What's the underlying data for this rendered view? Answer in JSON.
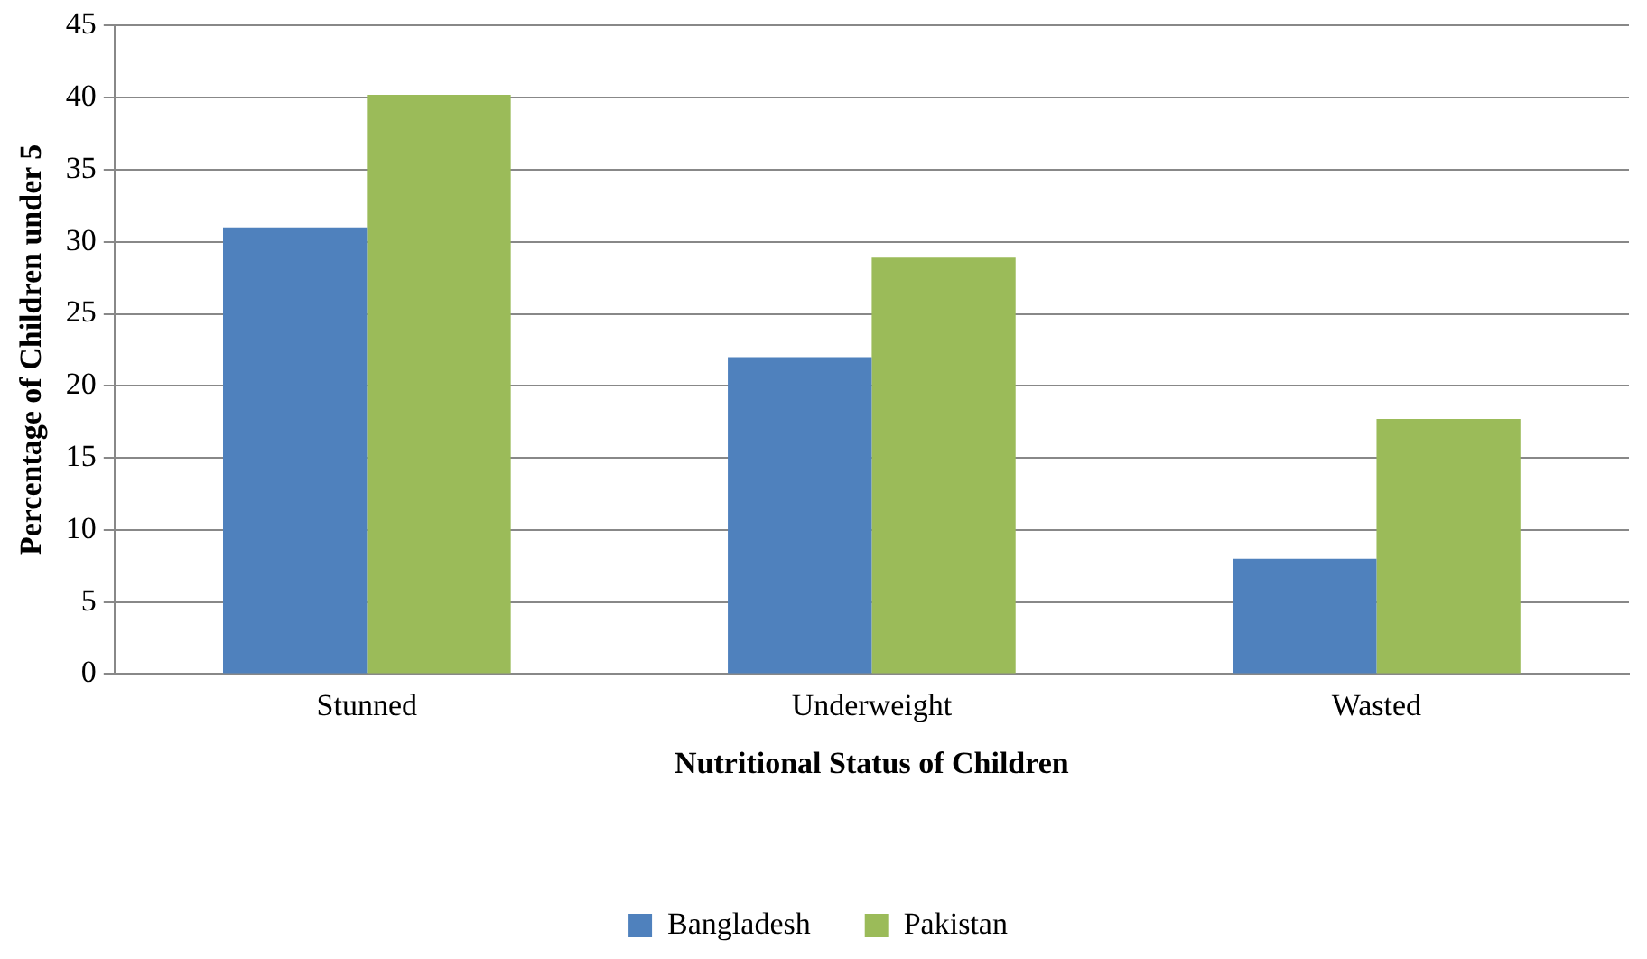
{
  "chart_data": {
    "type": "bar",
    "xlabel": "Nutritional Status of Children",
    "ylabel": "Percentage of Children under 5",
    "categories": [
      "Stunned",
      "Underweight",
      "Wasted"
    ],
    "series": [
      {
        "name": "Bangladesh",
        "color": "#4f81bd",
        "values": [
          31,
          22,
          8
        ]
      },
      {
        "name": "Pakistan",
        "color": "#9bbb59",
        "values": [
          40.2,
          28.9,
          17.7
        ]
      }
    ],
    "ylim": [
      0,
      45
    ],
    "yticks": [
      0,
      5,
      10,
      15,
      20,
      25,
      30,
      35,
      40,
      45
    ],
    "grid": "y",
    "legend": "bottom"
  }
}
